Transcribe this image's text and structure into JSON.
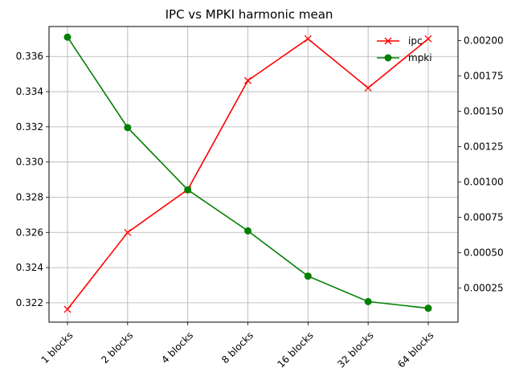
{
  "chart_data": {
    "type": "line",
    "title": "IPC vs MPKI harmonic mean",
    "categories": [
      "1 blocks",
      "2 blocks",
      "4 blocks",
      "8 blocks",
      "16 blocks",
      "32 blocks",
      "64 blocks"
    ],
    "grid": true,
    "legend_position": "top-right",
    "y_left": {
      "lim": [
        0.3209,
        0.3377
      ],
      "ticks": [
        0.322,
        0.324,
        0.326,
        0.328,
        0.33,
        0.332,
        0.334,
        0.336
      ],
      "tick_labels": [
        "0.322",
        "0.324",
        "0.326",
        "0.328",
        "0.330",
        "0.332",
        "0.334",
        "0.336"
      ]
    },
    "y_right": {
      "lim": [
        9.5e-06,
        0.0021
      ],
      "ticks": [
        0.00025,
        0.0005,
        0.00075,
        0.001,
        0.00125,
        0.0015,
        0.00175,
        0.002
      ],
      "tick_labels": [
        "0.00025",
        "0.00050",
        "0.00075",
        "0.00100",
        "0.00125",
        "0.00150",
        "0.00175",
        "0.00200"
      ]
    },
    "series": [
      {
        "name": "ipc",
        "axis": "left",
        "color": "#ff0000",
        "marker": "x",
        "values": [
          0.32163,
          0.326,
          0.32843,
          0.33463,
          0.337,
          0.33421,
          0.337
        ]
      },
      {
        "name": "mpki",
        "axis": "right",
        "color": "#008000",
        "marker": "circle",
        "values": [
          0.002025,
          0.001385,
          0.000945,
          0.000655,
          0.000335,
          0.000155,
          0.000108
        ]
      }
    ]
  }
}
